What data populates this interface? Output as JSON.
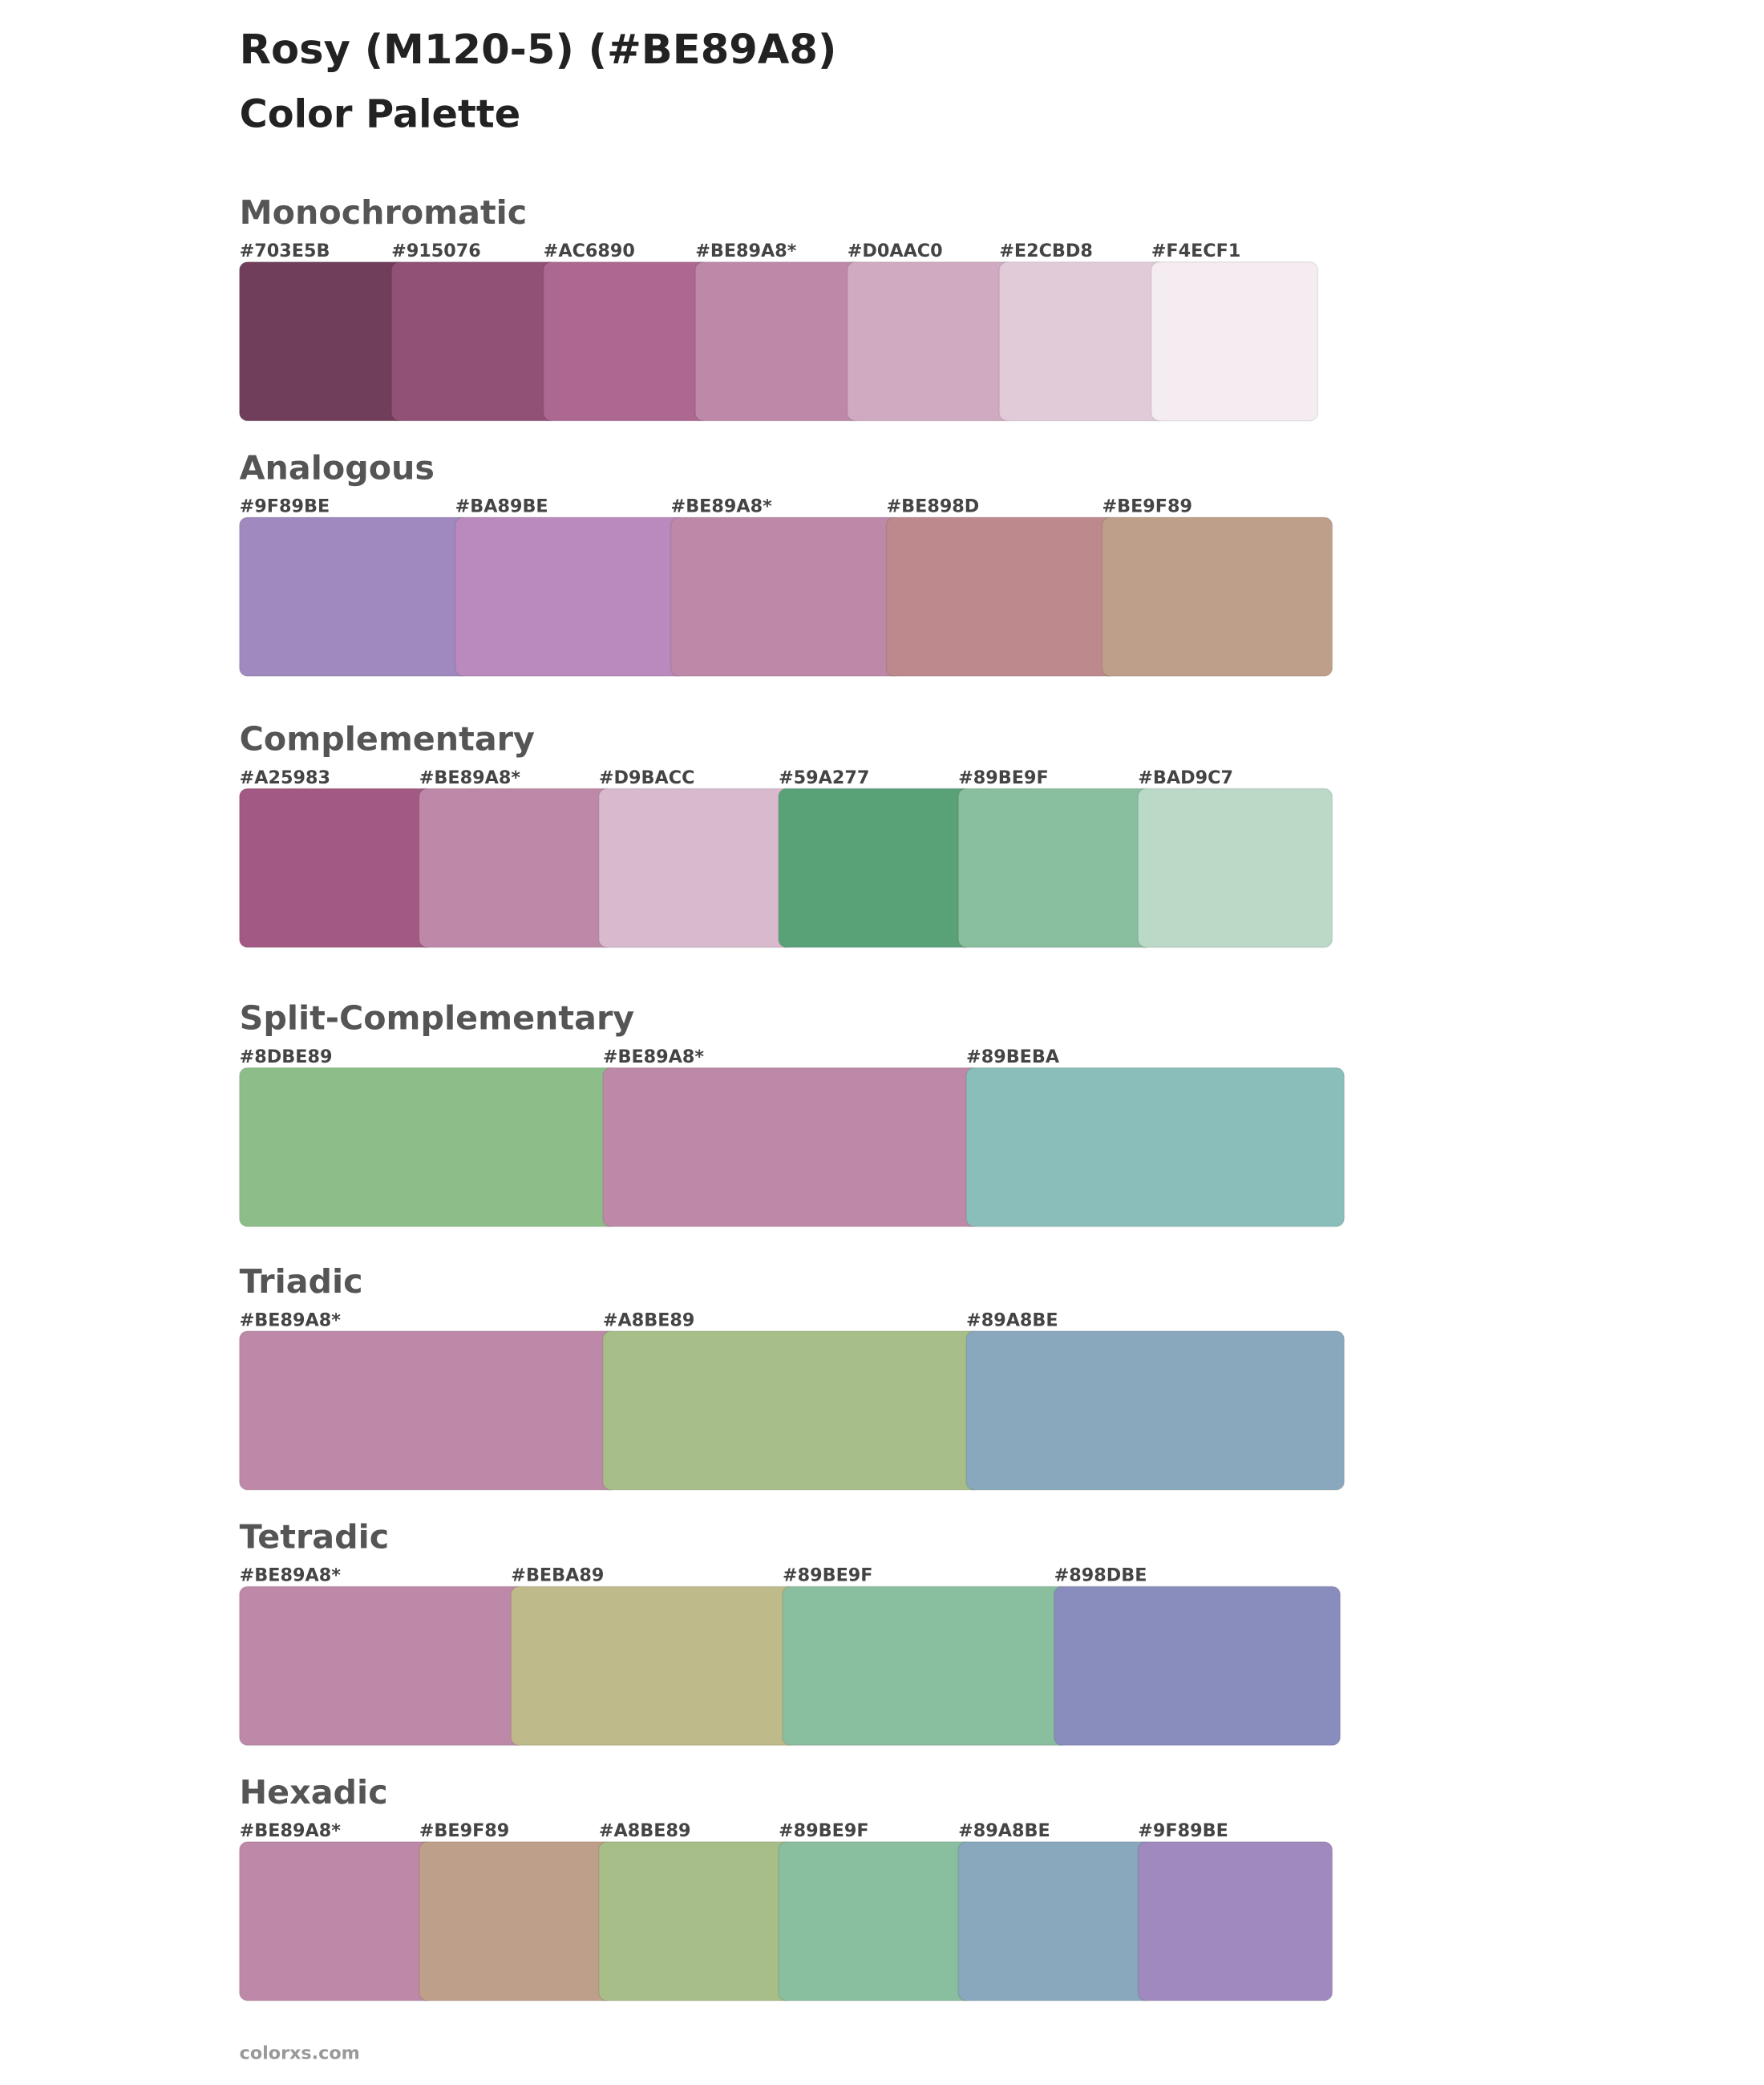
{
  "header": {
    "title": "Rosy (M120-5) (#BE89A8)",
    "subtitle": "Color Palette"
  },
  "sections": [
    {
      "name": "Monochromatic",
      "swatches": [
        {
          "label": "#703E5B",
          "color": "#703E5B"
        },
        {
          "label": "#915076",
          "color": "#915076"
        },
        {
          "label": "#AC6890",
          "color": "#AC6890"
        },
        {
          "label": "#BE89A8*",
          "color": "#BE89A8"
        },
        {
          "label": "#D0AAC0",
          "color": "#D0AAC0"
        },
        {
          "label": "#E2CBD8",
          "color": "#E2CBD8"
        },
        {
          "label": "#F4ECF1",
          "color": "#F4ECF1"
        }
      ]
    },
    {
      "name": "Analogous",
      "swatches": [
        {
          "label": "#9F89BE",
          "color": "#9F89BE"
        },
        {
          "label": "#BA89BE",
          "color": "#BA89BE"
        },
        {
          "label": "#BE89A8*",
          "color": "#BE89A8"
        },
        {
          "label": "#BE898D",
          "color": "#BE898D"
        },
        {
          "label": "#BE9F89",
          "color": "#BE9F89"
        }
      ]
    },
    {
      "name": "Complementary",
      "swatches": [
        {
          "label": "#A25983",
          "color": "#A25983"
        },
        {
          "label": "#BE89A8*",
          "color": "#BE89A8"
        },
        {
          "label": "#D9BACC",
          "color": "#D9BACC"
        },
        {
          "label": "#59A277",
          "color": "#59A277"
        },
        {
          "label": "#89BE9F",
          "color": "#89BE9F"
        },
        {
          "label": "#BAD9C7",
          "color": "#BAD9C7"
        }
      ]
    },
    {
      "name": "Split-Complementary",
      "swatches": [
        {
          "label": "#8DBE89",
          "color": "#8DBE89"
        },
        {
          "label": "#BE89A8*",
          "color": "#BE89A8"
        },
        {
          "label": "#89BEBA",
          "color": "#89BEBA"
        }
      ]
    },
    {
      "name": "Triadic",
      "swatches": [
        {
          "label": "#BE89A8*",
          "color": "#BE89A8"
        },
        {
          "label": "#A8BE89",
          "color": "#A8BE89"
        },
        {
          "label": "#89A8BE",
          "color": "#89A8BE"
        }
      ]
    },
    {
      "name": "Tetradic",
      "swatches": [
        {
          "label": "#BE89A8*",
          "color": "#BE89A8"
        },
        {
          "label": "#BEBA89",
          "color": "#BEBA89"
        },
        {
          "label": "#89BE9F",
          "color": "#89BE9F"
        },
        {
          "label": "#898DBE",
          "color": "#898DBE"
        }
      ]
    },
    {
      "name": "Hexadic",
      "swatches": [
        {
          "label": "#BE89A8*",
          "color": "#BE89A8"
        },
        {
          "label": "#BE9F89",
          "color": "#BE9F89"
        },
        {
          "label": "#A8BE89",
          "color": "#A8BE89"
        },
        {
          "label": "#89BE9F",
          "color": "#89BE9F"
        },
        {
          "label": "#89A8BE",
          "color": "#89A8BE"
        },
        {
          "label": "#9F89BE",
          "color": "#9F89BE"
        }
      ]
    }
  ],
  "footer": "colorxs.com"
}
